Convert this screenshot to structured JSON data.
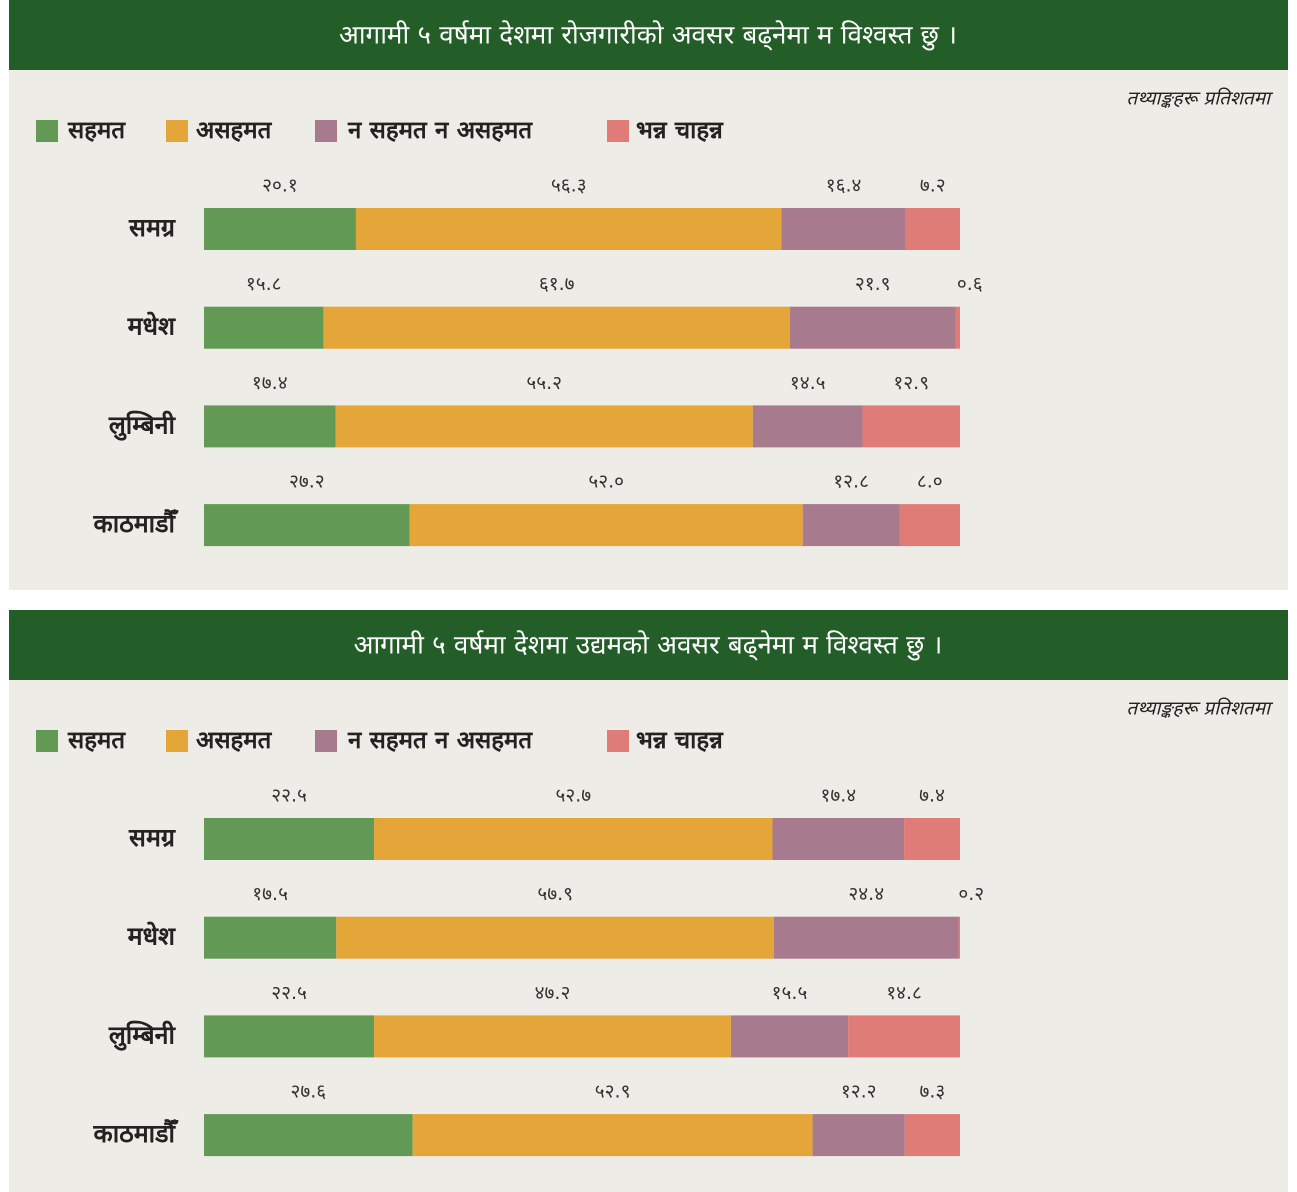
{
  "chart_data": [
    {
      "type": "bar",
      "orientation": "horizontal",
      "stacked": true,
      "title": "आगामी ५ वर्षमा देशमा रोजगारीको अवसर बढ्नेमा म विश्वस्त छु ।",
      "note": "तथ्याङ्कहरू प्रतिशतमा",
      "categories": [
        "समग्र",
        "मधेश",
        "लुम्बिनी",
        "काठमाडौँ"
      ],
      "xlim": [
        0,
        100
      ],
      "series": [
        {
          "name": "सहमत",
          "color": "#629a55",
          "values": [
            20.1,
            15.8,
            17.4,
            27.2
          ],
          "value_labels": [
            "२०.१",
            "१५.८",
            "१७.४",
            "२७.२"
          ]
        },
        {
          "name": "असहमत",
          "color": "#e5a639",
          "values": [
            56.3,
            61.7,
            55.2,
            52.0
          ],
          "value_labels": [
            "५६.३",
            "६१.७",
            "५५.२",
            "५२.०"
          ]
        },
        {
          "name": "न सहमत न असहमत",
          "color": "#a87a8e",
          "values": [
            16.4,
            21.9,
            14.5,
            12.8
          ],
          "value_labels": [
            "१६.४",
            "२१.९",
            "१४.५",
            "१२.८"
          ]
        },
        {
          "name": "भन्न चाहन्न",
          "color": "#e07c78",
          "values": [
            7.2,
            0.6,
            12.9,
            8.0
          ],
          "value_labels": [
            "७.२",
            "०.६",
            "१२.९",
            "८.०"
          ]
        }
      ]
    },
    {
      "type": "bar",
      "orientation": "horizontal",
      "stacked": true,
      "title": "आगामी ५ वर्षमा देशमा उद्यमको अवसर बढ्नेमा म विश्वस्त छु ।",
      "note": "तथ्याङ्कहरू प्रतिशतमा",
      "categories": [
        "समग्र",
        "मधेश",
        "लुम्बिनी",
        "काठमाडौँ"
      ],
      "xlim": [
        0,
        100
      ],
      "series": [
        {
          "name": "सहमत",
          "color": "#629a55",
          "values": [
            22.5,
            17.5,
            22.5,
            27.6
          ],
          "value_labels": [
            "२२.५",
            "१७.५",
            "२२.५",
            "२७.६"
          ]
        },
        {
          "name": "असहमत",
          "color": "#e5a639",
          "values": [
            52.7,
            57.9,
            47.2,
            52.9
          ],
          "value_labels": [
            "५२.७",
            "५७.९",
            "४७.२",
            "५२.९"
          ]
        },
        {
          "name": "न सहमत न असहमत",
          "color": "#a87a8e",
          "values": [
            17.4,
            24.4,
            15.5,
            12.2
          ],
          "value_labels": [
            "१७.४",
            "२४.४",
            "१५.५",
            "१२.२"
          ]
        },
        {
          "name": "भन्न चाहन्न",
          "color": "#e07c78",
          "values": [
            7.4,
            0.2,
            14.8,
            7.3
          ],
          "value_labels": [
            "७.४",
            "०.२",
            "१४.८",
            "७.३"
          ]
        }
      ]
    }
  ]
}
